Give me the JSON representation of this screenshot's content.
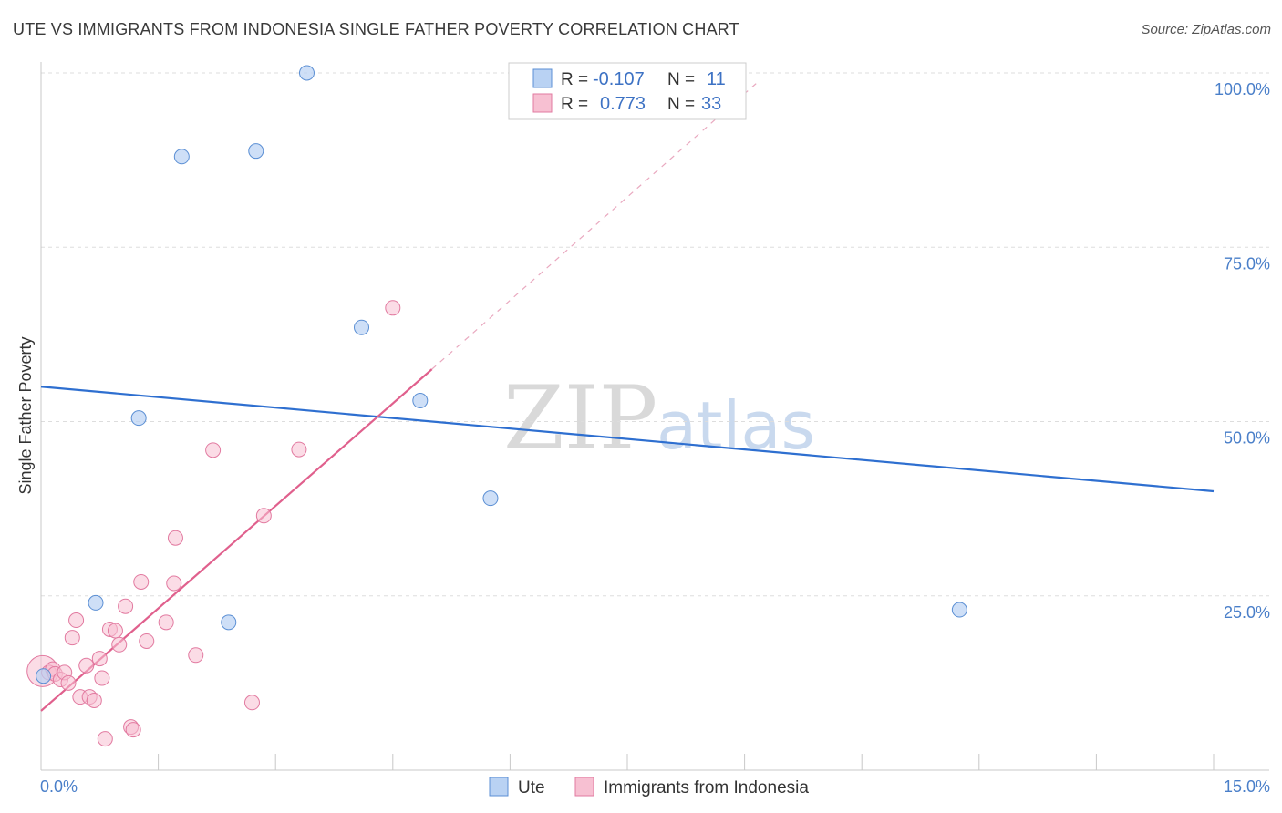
{
  "header": {
    "title": "UTE VS IMMIGRANTS FROM INDONESIA SINGLE FATHER POVERTY CORRELATION CHART",
    "source": "Source: ZipAtlas.com"
  },
  "watermark": {
    "zip": "ZIP",
    "atlas": "atlas"
  },
  "legend": {
    "r_label": "R =",
    "n_label": "N =",
    "rows": [
      {
        "r": "-0.107",
        "n": "11"
      },
      {
        "r": "0.773",
        "n": "33"
      }
    ]
  },
  "bottom_legend": {
    "ute": "Ute",
    "indonesia": "Immigrants from Indonesia"
  },
  "chart_data": {
    "type": "scatter",
    "title": "UTE VS IMMIGRANTS FROM INDONESIA SINGLE FATHER POVERTY CORRELATION CHART",
    "xlabel": "",
    "ylabel": "Single Father Poverty",
    "xlim": [
      0,
      15
    ],
    "ylim": [
      0,
      100
    ],
    "x_tick_labels": [
      "0.0%",
      "15.0%"
    ],
    "y_tick_labels": [
      "100.0%",
      "75.0%",
      "50.0%",
      "25.0%"
    ],
    "y_tick_values": [
      100,
      75,
      50,
      25
    ],
    "colors": {
      "ute_fill": "#b9d2f3",
      "ute_stroke": "#5b8fd4",
      "ute_line": "#2e6fd0",
      "indo_fill": "#f7c0d2",
      "indo_stroke": "#e27aa0",
      "indo_line": "#e0608d",
      "tick_text": "#4a7fc9",
      "grid": "#dddddd"
    },
    "series": [
      {
        "name": "Ute",
        "r": -0.107,
        "n": 11,
        "trend": {
          "x": [
            0,
            15
          ],
          "y": [
            55,
            40
          ]
        },
        "points": [
          {
            "x": 0.03,
            "y": 13.5
          },
          {
            "x": 0.7,
            "y": 24
          },
          {
            "x": 1.25,
            "y": 50.5
          },
          {
            "x": 1.8,
            "y": 88
          },
          {
            "x": 2.4,
            "y": 21.2
          },
          {
            "x": 2.75,
            "y": 88.8
          },
          {
            "x": 3.4,
            "y": 100
          },
          {
            "x": 4.1,
            "y": 63.5
          },
          {
            "x": 4.85,
            "y": 53
          },
          {
            "x": 5.75,
            "y": 39
          },
          {
            "x": 11.75,
            "y": 23
          }
        ]
      },
      {
        "name": "Immigrants from Indonesia",
        "r": 0.773,
        "n": 33,
        "trend": {
          "x": [
            0,
            5.0
          ],
          "y": [
            8.5,
            57.5
          ]
        },
        "trend_ext": {
          "x": [
            5.0,
            9.2
          ],
          "y": [
            57.5,
            99
          ]
        },
        "points": [
          {
            "x": 0.02,
            "y": 14.2,
            "big": true
          },
          {
            "x": 0.1,
            "y": 14
          },
          {
            "x": 0.15,
            "y": 14.5
          },
          {
            "x": 0.18,
            "y": 13.8
          },
          {
            "x": 0.25,
            "y": 13
          },
          {
            "x": 0.3,
            "y": 14
          },
          {
            "x": 0.35,
            "y": 12.5
          },
          {
            "x": 0.4,
            "y": 19
          },
          {
            "x": 0.45,
            "y": 21.5
          },
          {
            "x": 0.5,
            "y": 10.5
          },
          {
            "x": 0.58,
            "y": 15
          },
          {
            "x": 0.62,
            "y": 10.5
          },
          {
            "x": 0.68,
            "y": 10
          },
          {
            "x": 0.75,
            "y": 16
          },
          {
            "x": 0.78,
            "y": 13.2
          },
          {
            "x": 0.82,
            "y": 4.5
          },
          {
            "x": 0.88,
            "y": 20.2
          },
          {
            "x": 0.95,
            "y": 20
          },
          {
            "x": 1.0,
            "y": 18
          },
          {
            "x": 1.08,
            "y": 23.5
          },
          {
            "x": 1.15,
            "y": 6.2
          },
          {
            "x": 1.18,
            "y": 5.8
          },
          {
            "x": 1.28,
            "y": 27
          },
          {
            "x": 1.35,
            "y": 18.5
          },
          {
            "x": 1.6,
            "y": 21.2
          },
          {
            "x": 1.7,
            "y": 26.8
          },
          {
            "x": 1.72,
            "y": 33.3
          },
          {
            "x": 1.98,
            "y": 16.5
          },
          {
            "x": 2.2,
            "y": 45.9
          },
          {
            "x": 2.7,
            "y": 9.7
          },
          {
            "x": 2.85,
            "y": 36.5
          },
          {
            "x": 3.3,
            "y": 46
          },
          {
            "x": 4.5,
            "y": 66.3
          }
        ]
      }
    ]
  }
}
